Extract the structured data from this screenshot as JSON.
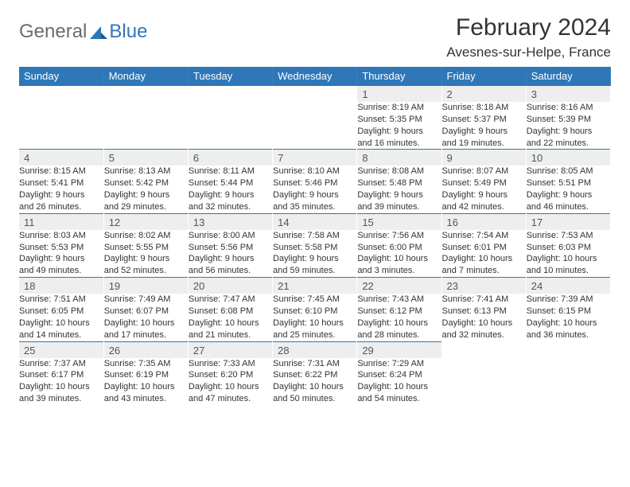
{
  "brand": {
    "general": "General",
    "blue": "Blue"
  },
  "title": "February 2024",
  "location": "Avesnes-sur-Helpe, France",
  "colors": {
    "header_bg": "#2e77b8",
    "header_text": "#ffffff",
    "daynum_bg": "#eeeeee",
    "border": "#2e77b8",
    "body_text": "#333333",
    "logo_gray": "#6b6b6b",
    "logo_blue": "#2e77b8",
    "page_bg": "#ffffff"
  },
  "typography": {
    "title_fontsize": 30,
    "location_fontsize": 17,
    "weekday_fontsize": 13,
    "daynum_fontsize": 13,
    "cell_fontsize": 11
  },
  "weekdays": [
    "Sunday",
    "Monday",
    "Tuesday",
    "Wednesday",
    "Thursday",
    "Friday",
    "Saturday"
  ],
  "weeks": [
    [
      null,
      null,
      null,
      null,
      {
        "n": "1",
        "sr": "Sunrise: 8:19 AM",
        "ss": "Sunset: 5:35 PM",
        "d1": "Daylight: 9 hours",
        "d2": "and 16 minutes."
      },
      {
        "n": "2",
        "sr": "Sunrise: 8:18 AM",
        "ss": "Sunset: 5:37 PM",
        "d1": "Daylight: 9 hours",
        "d2": "and 19 minutes."
      },
      {
        "n": "3",
        "sr": "Sunrise: 8:16 AM",
        "ss": "Sunset: 5:39 PM",
        "d1": "Daylight: 9 hours",
        "d2": "and 22 minutes."
      }
    ],
    [
      {
        "n": "4",
        "sr": "Sunrise: 8:15 AM",
        "ss": "Sunset: 5:41 PM",
        "d1": "Daylight: 9 hours",
        "d2": "and 26 minutes."
      },
      {
        "n": "5",
        "sr": "Sunrise: 8:13 AM",
        "ss": "Sunset: 5:42 PM",
        "d1": "Daylight: 9 hours",
        "d2": "and 29 minutes."
      },
      {
        "n": "6",
        "sr": "Sunrise: 8:11 AM",
        "ss": "Sunset: 5:44 PM",
        "d1": "Daylight: 9 hours",
        "d2": "and 32 minutes."
      },
      {
        "n": "7",
        "sr": "Sunrise: 8:10 AM",
        "ss": "Sunset: 5:46 PM",
        "d1": "Daylight: 9 hours",
        "d2": "and 35 minutes."
      },
      {
        "n": "8",
        "sr": "Sunrise: 8:08 AM",
        "ss": "Sunset: 5:48 PM",
        "d1": "Daylight: 9 hours",
        "d2": "and 39 minutes."
      },
      {
        "n": "9",
        "sr": "Sunrise: 8:07 AM",
        "ss": "Sunset: 5:49 PM",
        "d1": "Daylight: 9 hours",
        "d2": "and 42 minutes."
      },
      {
        "n": "10",
        "sr": "Sunrise: 8:05 AM",
        "ss": "Sunset: 5:51 PM",
        "d1": "Daylight: 9 hours",
        "d2": "and 46 minutes."
      }
    ],
    [
      {
        "n": "11",
        "sr": "Sunrise: 8:03 AM",
        "ss": "Sunset: 5:53 PM",
        "d1": "Daylight: 9 hours",
        "d2": "and 49 minutes."
      },
      {
        "n": "12",
        "sr": "Sunrise: 8:02 AM",
        "ss": "Sunset: 5:55 PM",
        "d1": "Daylight: 9 hours",
        "d2": "and 52 minutes."
      },
      {
        "n": "13",
        "sr": "Sunrise: 8:00 AM",
        "ss": "Sunset: 5:56 PM",
        "d1": "Daylight: 9 hours",
        "d2": "and 56 minutes."
      },
      {
        "n": "14",
        "sr": "Sunrise: 7:58 AM",
        "ss": "Sunset: 5:58 PM",
        "d1": "Daylight: 9 hours",
        "d2": "and 59 minutes."
      },
      {
        "n": "15",
        "sr": "Sunrise: 7:56 AM",
        "ss": "Sunset: 6:00 PM",
        "d1": "Daylight: 10 hours",
        "d2": "and 3 minutes."
      },
      {
        "n": "16",
        "sr": "Sunrise: 7:54 AM",
        "ss": "Sunset: 6:01 PM",
        "d1": "Daylight: 10 hours",
        "d2": "and 7 minutes."
      },
      {
        "n": "17",
        "sr": "Sunrise: 7:53 AM",
        "ss": "Sunset: 6:03 PM",
        "d1": "Daylight: 10 hours",
        "d2": "and 10 minutes."
      }
    ],
    [
      {
        "n": "18",
        "sr": "Sunrise: 7:51 AM",
        "ss": "Sunset: 6:05 PM",
        "d1": "Daylight: 10 hours",
        "d2": "and 14 minutes."
      },
      {
        "n": "19",
        "sr": "Sunrise: 7:49 AM",
        "ss": "Sunset: 6:07 PM",
        "d1": "Daylight: 10 hours",
        "d2": "and 17 minutes."
      },
      {
        "n": "20",
        "sr": "Sunrise: 7:47 AM",
        "ss": "Sunset: 6:08 PM",
        "d1": "Daylight: 10 hours",
        "d2": "and 21 minutes."
      },
      {
        "n": "21",
        "sr": "Sunrise: 7:45 AM",
        "ss": "Sunset: 6:10 PM",
        "d1": "Daylight: 10 hours",
        "d2": "and 25 minutes."
      },
      {
        "n": "22",
        "sr": "Sunrise: 7:43 AM",
        "ss": "Sunset: 6:12 PM",
        "d1": "Daylight: 10 hours",
        "d2": "and 28 minutes."
      },
      {
        "n": "23",
        "sr": "Sunrise: 7:41 AM",
        "ss": "Sunset: 6:13 PM",
        "d1": "Daylight: 10 hours",
        "d2": "and 32 minutes."
      },
      {
        "n": "24",
        "sr": "Sunrise: 7:39 AM",
        "ss": "Sunset: 6:15 PM",
        "d1": "Daylight: 10 hours",
        "d2": "and 36 minutes."
      }
    ],
    [
      {
        "n": "25",
        "sr": "Sunrise: 7:37 AM",
        "ss": "Sunset: 6:17 PM",
        "d1": "Daylight: 10 hours",
        "d2": "and 39 minutes."
      },
      {
        "n": "26",
        "sr": "Sunrise: 7:35 AM",
        "ss": "Sunset: 6:19 PM",
        "d1": "Daylight: 10 hours",
        "d2": "and 43 minutes."
      },
      {
        "n": "27",
        "sr": "Sunrise: 7:33 AM",
        "ss": "Sunset: 6:20 PM",
        "d1": "Daylight: 10 hours",
        "d2": "and 47 minutes."
      },
      {
        "n": "28",
        "sr": "Sunrise: 7:31 AM",
        "ss": "Sunset: 6:22 PM",
        "d1": "Daylight: 10 hours",
        "d2": "and 50 minutes."
      },
      {
        "n": "29",
        "sr": "Sunrise: 7:29 AM",
        "ss": "Sunset: 6:24 PM",
        "d1": "Daylight: 10 hours",
        "d2": "and 54 minutes."
      },
      null,
      null
    ]
  ]
}
